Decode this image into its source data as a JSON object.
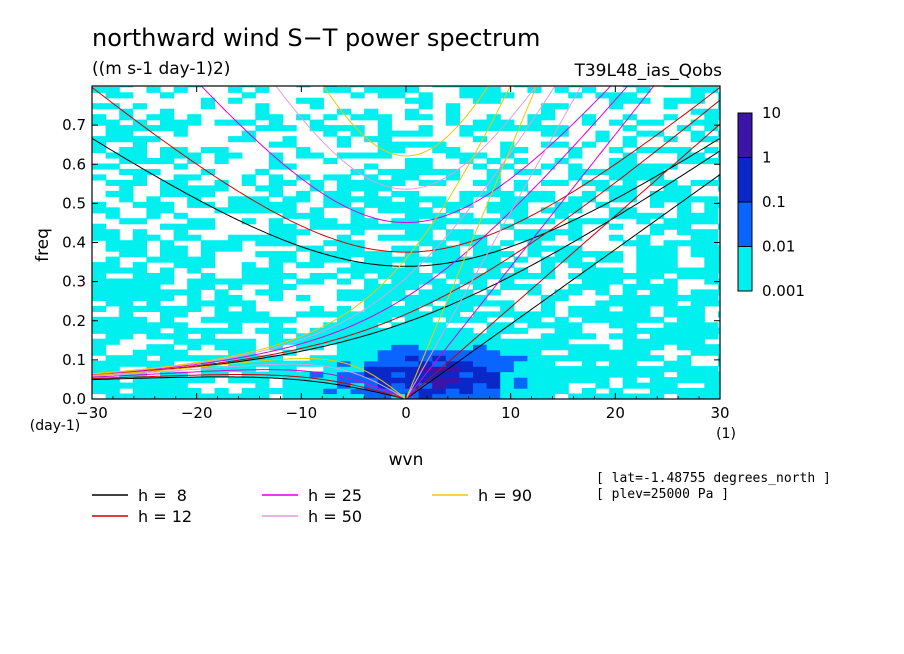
{
  "chart_data": {
    "type": "heatmap",
    "title": "northward wind S−T power spectrum",
    "units": "((m s-1 day-1)2)",
    "run_label": "T39L48_ias_Qobs",
    "xlabel": "wvn",
    "ylabel": "freq",
    "x_unit": "(1)",
    "y_unit": "(day-1)",
    "xlim": [
      -30,
      30
    ],
    "ylim": [
      0,
      0.8
    ],
    "x_ticks": [
      -30,
      -20,
      -10,
      0,
      10,
      20,
      30
    ],
    "x_tick_labels": [
      "−30",
      "−20",
      "−10",
      "0",
      "10",
      "20",
      "30"
    ],
    "y_ticks": [
      0,
      0.1,
      0.2,
      0.3,
      0.4,
      0.5,
      0.6,
      0.7
    ],
    "y_tick_labels": [
      "0.0",
      "0.1",
      "0.2",
      "0.3",
      "0.4",
      "0.5",
      "0.6",
      "0.7"
    ],
    "colorbar": {
      "levels": [
        0.001,
        0.01,
        0.1,
        1,
        10
      ],
      "labels": [
        "0.001",
        "0.01",
        "0.1",
        "1",
        "10"
      ],
      "colors": [
        "#00f0f0",
        "#0a64ff",
        "#0a28c8",
        "#3c14aa"
      ]
    },
    "dispersion_curves": [
      {
        "name": "h =  8",
        "h": 8,
        "color": "#000000"
      },
      {
        "name": "h = 12",
        "h": 12,
        "color": "#d20000"
      },
      {
        "name": "h = 25",
        "h": 25,
        "color": "#dc00dc"
      },
      {
        "name": "h = 50",
        "h": 50,
        "color": "#dca0dc"
      },
      {
        "name": "h = 90",
        "h": 90,
        "color": "#f0c800"
      }
    ],
    "info": [
      "[ lat=-1.48755 degrees_north ]",
      "[ plev=25000 Pa ]"
    ]
  }
}
